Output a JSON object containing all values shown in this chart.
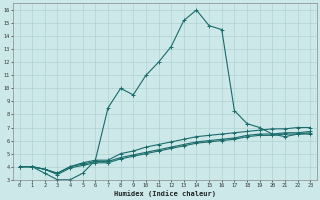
{
  "title": "",
  "xlabel": "Humidex (Indice chaleur)",
  "ylabel": "",
  "xlim": [
    -0.5,
    23.5
  ],
  "ylim": [
    3,
    16.5
  ],
  "yticks": [
    3,
    4,
    5,
    6,
    7,
    8,
    9,
    10,
    11,
    12,
    13,
    14,
    15,
    16
  ],
  "xticks": [
    0,
    1,
    2,
    3,
    4,
    5,
    6,
    7,
    8,
    9,
    10,
    11,
    12,
    13,
    14,
    15,
    16,
    17,
    18,
    19,
    20,
    21,
    22,
    23
  ],
  "xtick_labels": [
    "0",
    "1",
    "2",
    "3",
    "4",
    "5",
    "6",
    "7",
    "8",
    "9",
    "10",
    "11",
    "12",
    "13",
    "14",
    "15",
    "16",
    "17",
    "18",
    "19",
    "20",
    "21",
    "22",
    "23"
  ],
  "bg_color": "#cce8e8",
  "grid_color": "#aacccc",
  "line_color": "#1a6b6b",
  "line_width": 0.8,
  "marker": "+",
  "marker_size": 3,
  "marker_edge_width": 0.7,
  "curves": [
    {
      "x": [
        0,
        1,
        2,
        3,
        4,
        5,
        6,
        7,
        8,
        9,
        10,
        11,
        12,
        13,
        14,
        15,
        16,
        17,
        18,
        19,
        20,
        21,
        22,
        23
      ],
      "y": [
        4.0,
        4.0,
        3.5,
        3.0,
        3.0,
        3.5,
        4.5,
        8.5,
        10.0,
        9.5,
        11.0,
        12.0,
        13.2,
        15.2,
        16.0,
        14.8,
        14.5,
        8.3,
        7.3,
        7.0,
        6.5,
        6.3,
        6.5,
        6.5
      ]
    },
    {
      "x": [
        0,
        1,
        2,
        3,
        4,
        5,
        6,
        7,
        8,
        9,
        10,
        11,
        12,
        13,
        14,
        15,
        16,
        17,
        18,
        19,
        20,
        21,
        22,
        23
      ],
      "y": [
        4.0,
        4.0,
        3.8,
        3.5,
        4.0,
        4.3,
        4.5,
        4.5,
        5.0,
        5.2,
        5.5,
        5.7,
        5.9,
        6.1,
        6.3,
        6.4,
        6.5,
        6.6,
        6.7,
        6.8,
        6.9,
        6.9,
        7.0,
        7.0
      ]
    },
    {
      "x": [
        0,
        1,
        2,
        3,
        4,
        5,
        6,
        7,
        8,
        9,
        10,
        11,
        12,
        13,
        14,
        15,
        16,
        17,
        18,
        19,
        20,
        21,
        22,
        23
      ],
      "y": [
        4.0,
        4.0,
        3.8,
        3.5,
        4.0,
        4.2,
        4.4,
        4.4,
        4.7,
        4.9,
        5.1,
        5.3,
        5.5,
        5.7,
        5.9,
        6.0,
        6.1,
        6.2,
        6.4,
        6.5,
        6.5,
        6.6,
        6.6,
        6.7
      ]
    },
    {
      "x": [
        0,
        1,
        2,
        3,
        4,
        5,
        6,
        7,
        8,
        9,
        10,
        11,
        12,
        13,
        14,
        15,
        16,
        17,
        18,
        19,
        20,
        21,
        22,
        23
      ],
      "y": [
        4.0,
        4.0,
        3.8,
        3.4,
        3.9,
        4.1,
        4.3,
        4.3,
        4.6,
        4.8,
        5.0,
        5.2,
        5.4,
        5.6,
        5.8,
        5.9,
        6.0,
        6.1,
        6.3,
        6.4,
        6.4,
        6.5,
        6.5,
        6.6
      ]
    }
  ]
}
